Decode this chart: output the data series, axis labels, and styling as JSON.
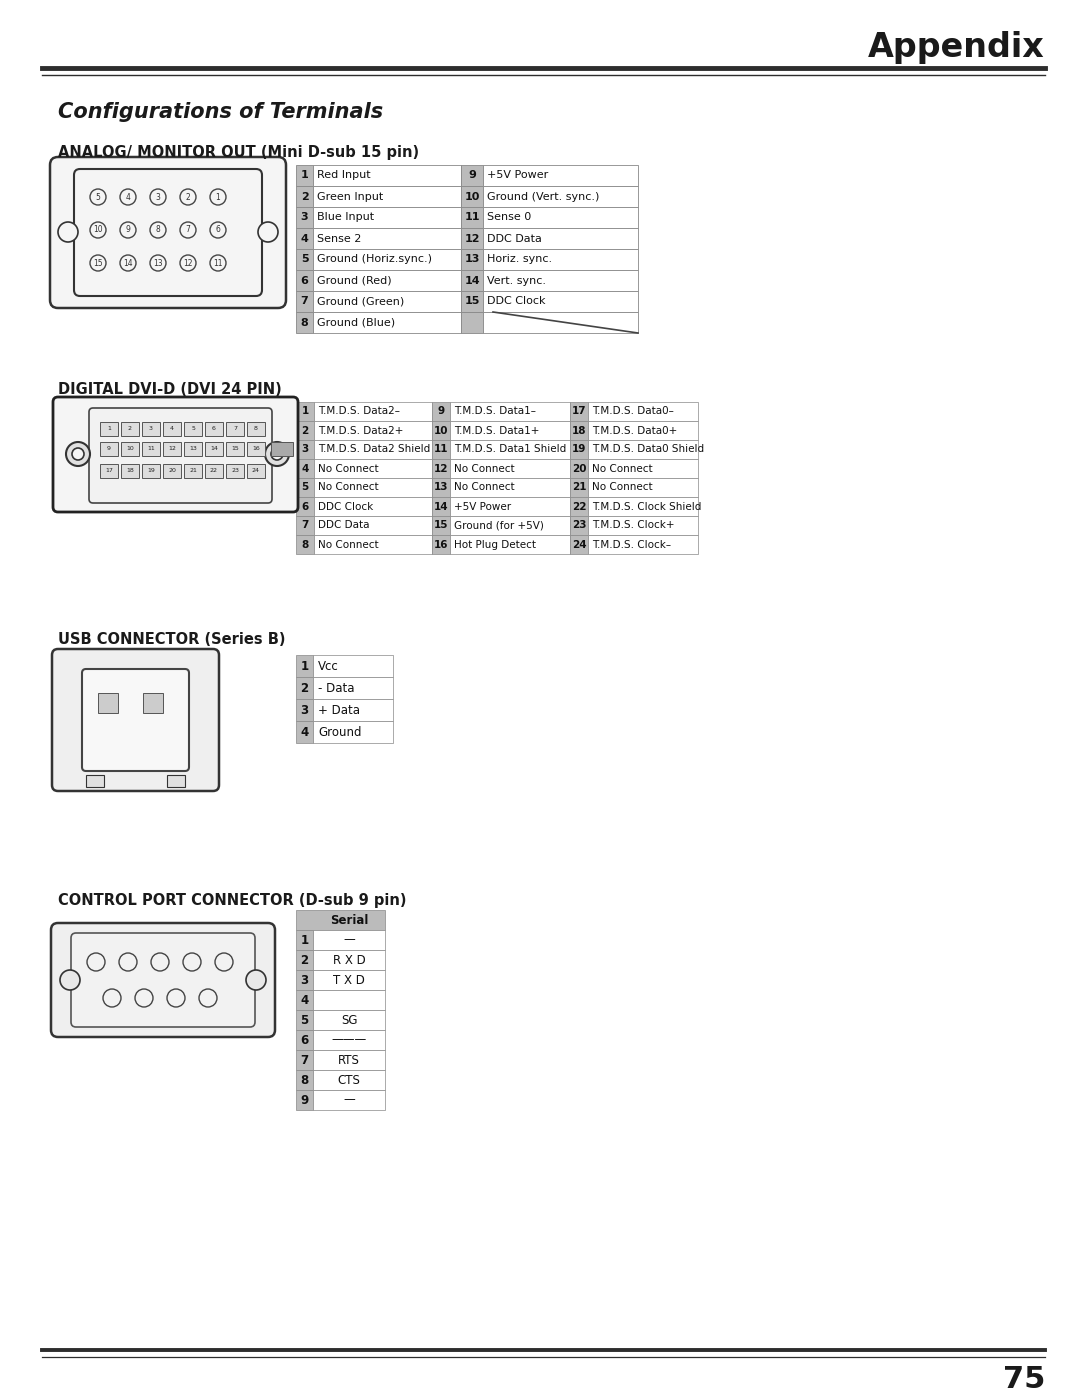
{
  "page_title": "Appendix",
  "section_title": "Configurations of Terminals",
  "page_number": "75",
  "bg_color": "#ffffff",
  "analog_title": "ANALOG/ MONITOR OUT (Mini D-sub 15 pin)",
  "analog_table": {
    "col1": [
      [
        "1",
        "Red Input"
      ],
      [
        "2",
        "Green Input"
      ],
      [
        "3",
        "Blue Input"
      ],
      [
        "4",
        "Sense 2"
      ],
      [
        "5",
        "Ground (Horiz.sync.)"
      ],
      [
        "6",
        "Ground (Red)"
      ],
      [
        "7",
        "Ground (Green)"
      ],
      [
        "8",
        "Ground (Blue)"
      ]
    ],
    "col2": [
      [
        "9",
        "+5V Power"
      ],
      [
        "10",
        "Ground (Vert. sync.)"
      ],
      [
        "11",
        "Sense 0"
      ],
      [
        "12",
        "DDC Data"
      ],
      [
        "13",
        "Horiz. sync."
      ],
      [
        "14",
        "Vert. sync."
      ],
      [
        "15",
        "DDC Clock"
      ],
      [
        "",
        ""
      ]
    ]
  },
  "dvi_title": "DIGITAL DVI-D (DVI 24 PIN)",
  "dvi_table": {
    "col1": [
      [
        "1",
        "T.M.D.S. Data2–"
      ],
      [
        "2",
        "T.M.D.S. Data2+"
      ],
      [
        "3",
        "T.M.D.S. Data2 Shield"
      ],
      [
        "4",
        "No Connect"
      ],
      [
        "5",
        "No Connect"
      ],
      [
        "6",
        "DDC Clock"
      ],
      [
        "7",
        "DDC Data"
      ],
      [
        "8",
        "No Connect"
      ]
    ],
    "col2": [
      [
        "9",
        "T.M.D.S. Data1–"
      ],
      [
        "10",
        "T.M.D.S. Data1+"
      ],
      [
        "11",
        "T.M.D.S. Data1 Shield"
      ],
      [
        "12",
        "No Connect"
      ],
      [
        "13",
        "No Connect"
      ],
      [
        "14",
        "+5V Power"
      ],
      [
        "15",
        "Ground (for +5V)"
      ],
      [
        "16",
        "Hot Plug Detect"
      ]
    ],
    "col3": [
      [
        "17",
        "T.M.D.S. Data0–"
      ],
      [
        "18",
        "T.M.D.S. Data0+"
      ],
      [
        "19",
        "T.M.D.S. Data0 Shield"
      ],
      [
        "20",
        "No Connect"
      ],
      [
        "21",
        "No Connect"
      ],
      [
        "22",
        "T.M.D.S. Clock Shield"
      ],
      [
        "23",
        "T.M.D.S. Clock+"
      ],
      [
        "24",
        "T.M.D.S. Clock–"
      ]
    ]
  },
  "usb_title": "USB CONNECTOR (Series B)",
  "usb_table": [
    [
      "1",
      "Vcc"
    ],
    [
      "2",
      "- Data"
    ],
    [
      "3",
      "+ Data"
    ],
    [
      "4",
      "Ground"
    ]
  ],
  "control_title": "CONTROL PORT CONNECTOR (D-sub 9 pin)",
  "control_table": {
    "header": "Serial",
    "rows": [
      [
        "1",
        "—"
      ],
      [
        "2",
        "R X D"
      ],
      [
        "3",
        "T X D"
      ],
      [
        "4",
        ""
      ],
      [
        "5",
        "SG"
      ],
      [
        "6",
        "———"
      ],
      [
        "7",
        "RTS"
      ],
      [
        "8",
        "CTS"
      ],
      [
        "9",
        "—"
      ]
    ]
  },
  "header_line_color": "#2d2d2d",
  "table_border_color": "#666666",
  "table_num_bg": "#bbbbbb",
  "text_color": "#1a1a1a",
  "title_color": "#1a1a1a"
}
